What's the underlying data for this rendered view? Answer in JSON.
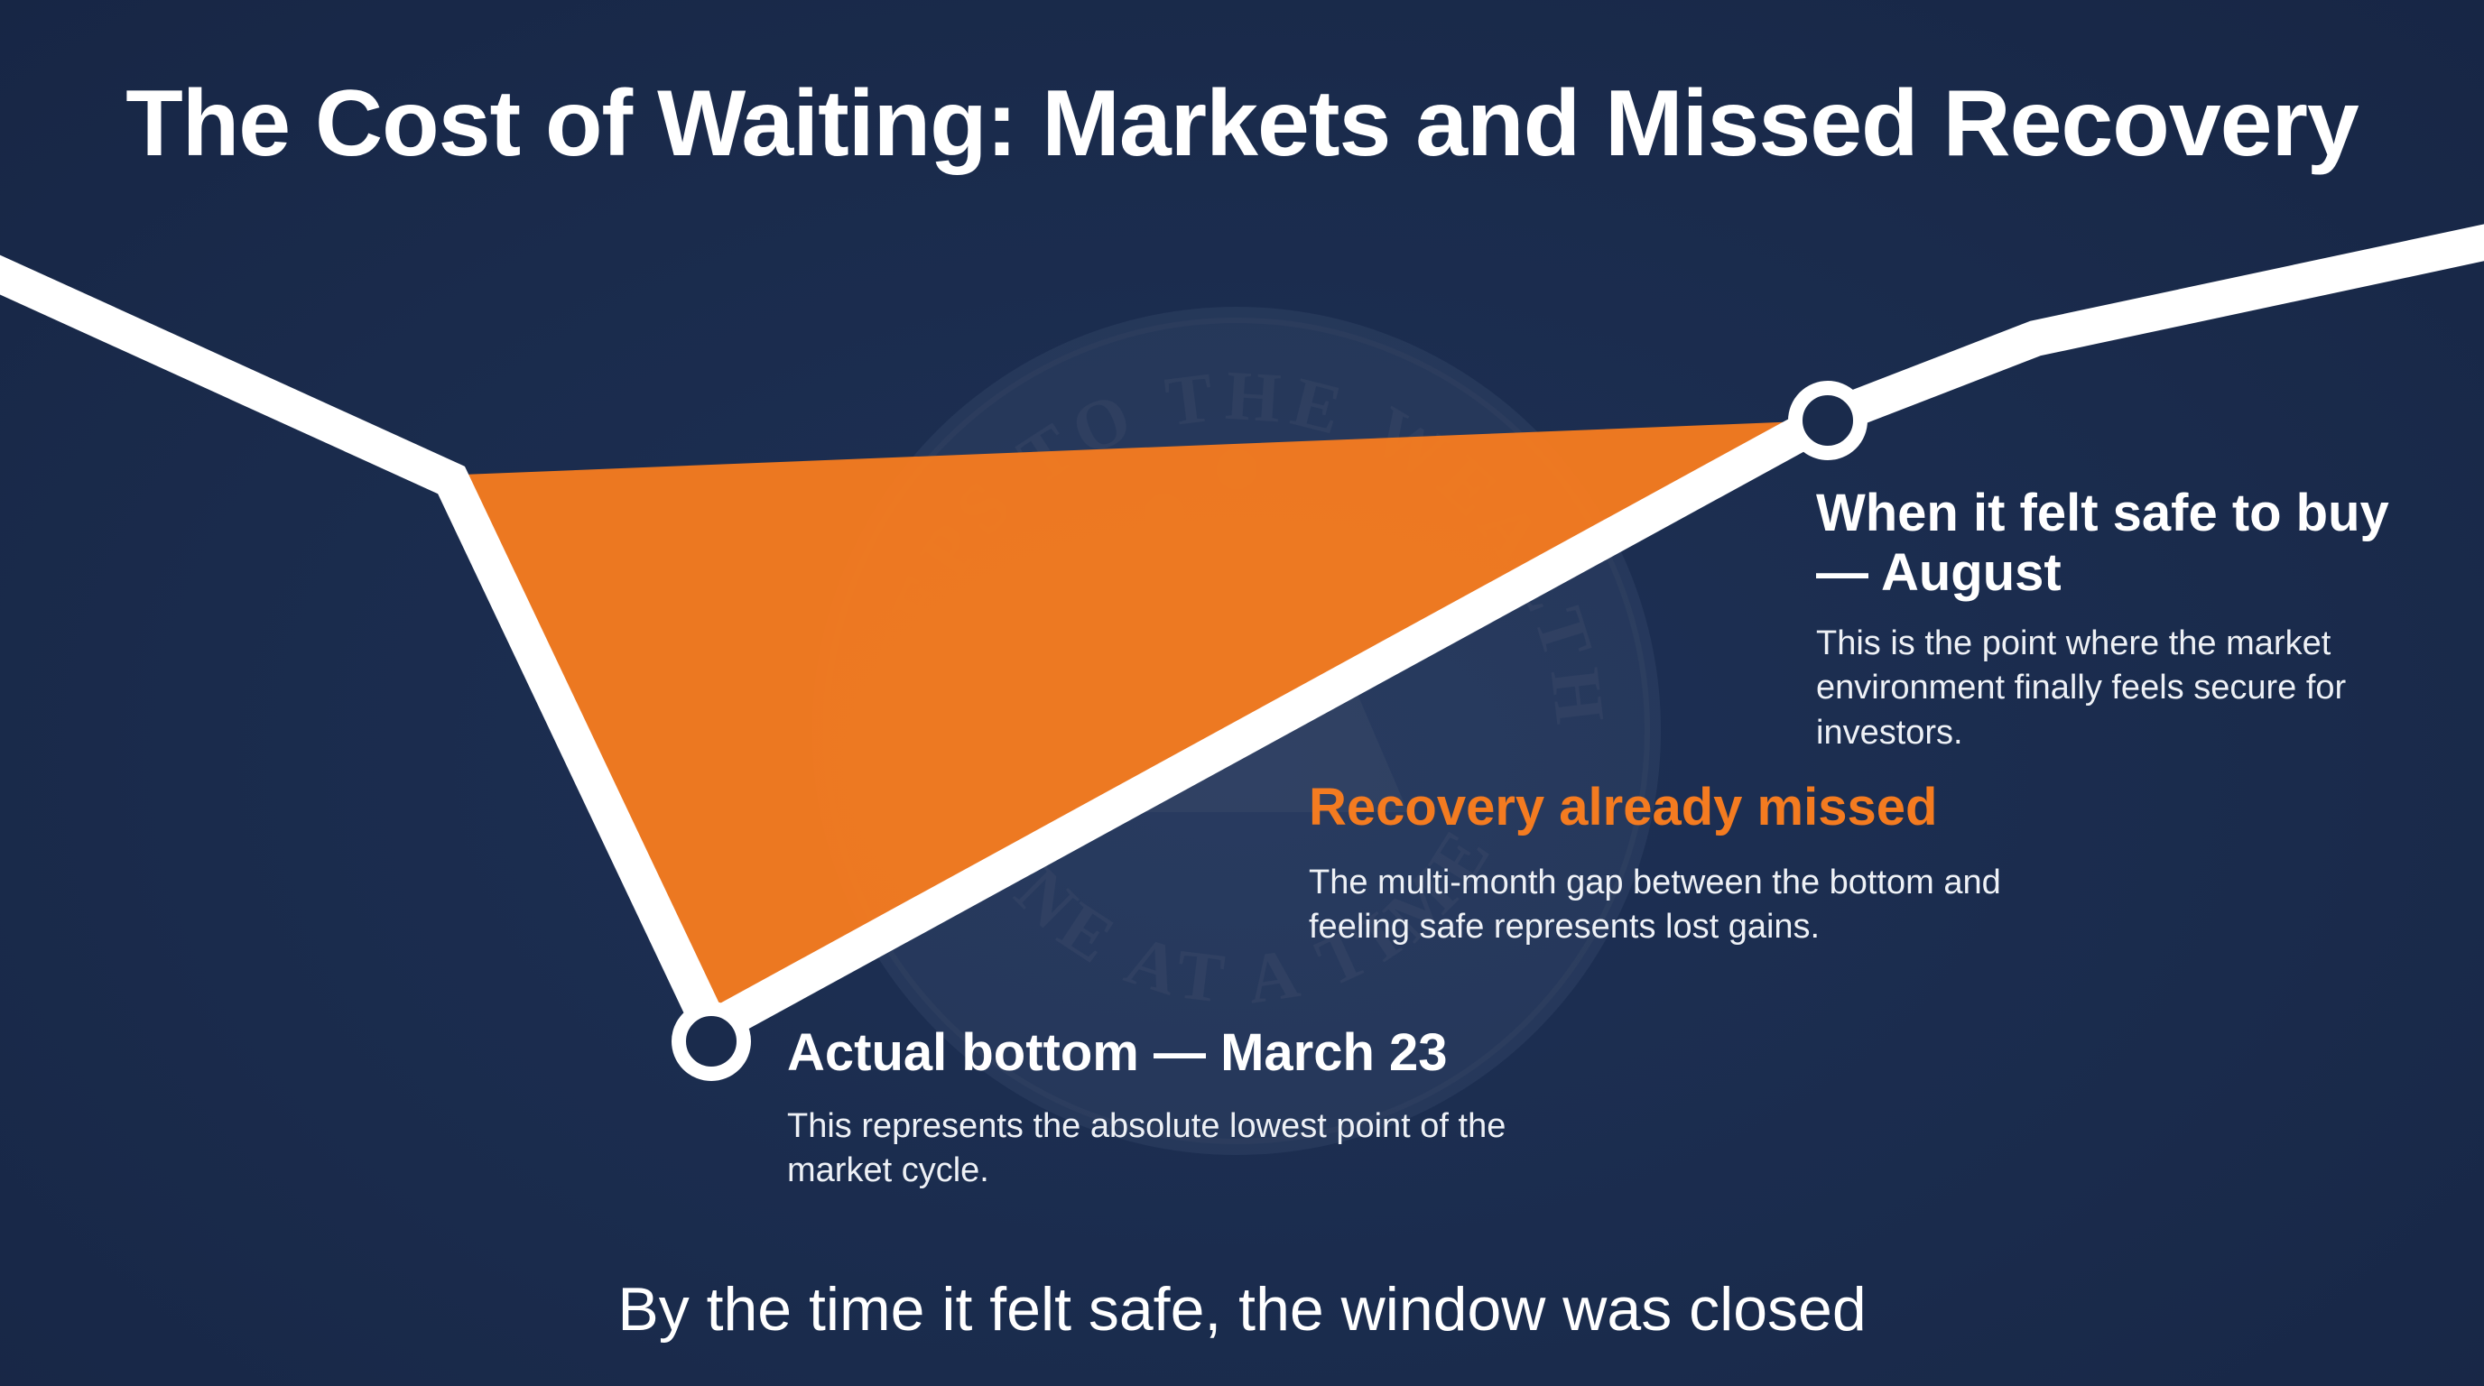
{
  "title": "The Cost of Waiting: Markets and Missed Recovery",
  "watermark": {
    "top_text": "STEPS TO THE WEALTH",
    "bottom_text": "ONE AT A TIME"
  },
  "points": {
    "safe": {
      "heading": "When it felt safe to buy — August",
      "description": "This is the point where the market environment finally feels secure for investors."
    },
    "missed": {
      "heading": "Recovery already missed",
      "description": "The multi-month gap between the bottom and feeling safe represents lost gains."
    },
    "bottom": {
      "heading": "Actual bottom — March 23",
      "description": "This represents the absolute lowest point of the market cycle."
    }
  },
  "footer": "By the time it felt safe, the window was closed",
  "colors": {
    "background": "#1a2b4c",
    "line": "#ffffff",
    "accent": "#f47b20"
  }
}
